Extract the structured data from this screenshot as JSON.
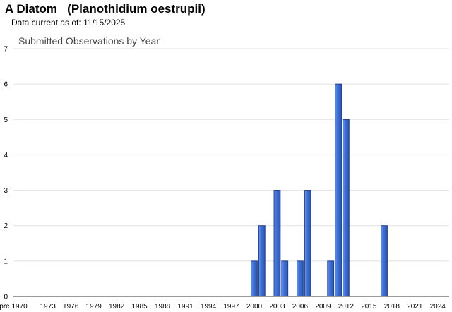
{
  "header": {
    "title": "A Diatom   (Planothidium oestrupii)",
    "as_of_label": "Data current as of:",
    "as_of_date": "11/15/2025"
  },
  "chart_data": {
    "type": "bar",
    "title": "Submitted Observations by Year",
    "xlabel": "",
    "ylabel": "",
    "ylim": [
      0,
      7
    ],
    "y_ticks": [
      0,
      1,
      2,
      3,
      4,
      5,
      6,
      7
    ],
    "grid": "horizontal",
    "legend": "none",
    "bar_color": "#3f72d8",
    "x_tick_labels": [
      "pre 1970",
      "1973",
      "1976",
      "1979",
      "1982",
      "1985",
      "1988",
      "1991",
      "1994",
      "1997",
      "2000",
      "2003",
      "2006",
      "2009",
      "2012",
      "2015",
      "2018",
      "2021",
      "2024"
    ],
    "categories": [
      "pre 1970",
      "1970",
      "1971",
      "1972",
      "1973",
      "1974",
      "1975",
      "1976",
      "1977",
      "1978",
      "1979",
      "1980",
      "1981",
      "1982",
      "1983",
      "1984",
      "1985",
      "1986",
      "1987",
      "1988",
      "1989",
      "1990",
      "1991",
      "1992",
      "1993",
      "1994",
      "1995",
      "1996",
      "1997",
      "1998",
      "1999",
      "2000",
      "2001",
      "2002",
      "2003",
      "2004",
      "2005",
      "2006",
      "2007",
      "2008",
      "2009",
      "2010",
      "2011",
      "2012",
      "2013",
      "2014",
      "2015",
      "2016",
      "2017",
      "2018",
      "2019",
      "2020",
      "2021",
      "2022",
      "2023",
      "2024",
      "2025"
    ],
    "values": [
      0,
      0,
      0,
      0,
      0,
      0,
      0,
      0,
      0,
      0,
      0,
      0,
      0,
      0,
      0,
      0,
      0,
      0,
      0,
      0,
      0,
      0,
      0,
      0,
      0,
      0,
      0,
      0,
      0,
      0,
      0,
      1,
      2,
      0,
      3,
      1,
      0,
      1,
      3,
      0,
      0,
      1,
      6,
      5,
      0,
      0,
      0,
      0,
      2,
      0,
      0,
      0,
      0,
      0,
      0,
      0,
      0
    ]
  }
}
